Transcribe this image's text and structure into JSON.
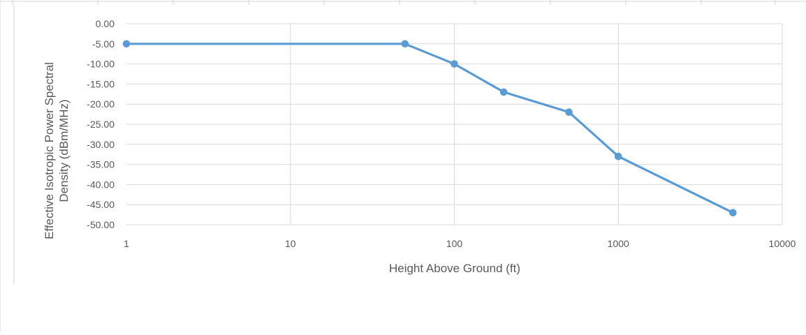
{
  "colors": {
    "series": "#5b9bd5",
    "grid": "#d9d9d9",
    "text": "#595959",
    "sheet_lines": "#d4d4d4"
  },
  "chart_data": {
    "type": "line",
    "xscale": "log",
    "x": [
      1,
      50,
      100,
      200,
      500,
      1000,
      5000
    ],
    "series": [
      {
        "values": [
          -5,
          -5,
          -10,
          -17,
          -22,
          -33,
          -47
        ]
      }
    ],
    "xlim": [
      1,
      10000
    ],
    "ylim": [
      -50,
      0
    ],
    "xticks": [
      1,
      10,
      100,
      1000,
      10000
    ],
    "xtick_labels": [
      "1",
      "10",
      "100",
      "1000",
      "10000"
    ],
    "yticks": [
      0,
      -5,
      -10,
      -15,
      -20,
      -25,
      -30,
      -35,
      -40,
      -45,
      -50
    ],
    "ytick_labels": [
      "0.00",
      "-5.00",
      "-10.00",
      "-15.00",
      "-20.00",
      "-25.00",
      "-30.00",
      "-35.00",
      "-40.00",
      "-45.00",
      "-50.00"
    ],
    "xlabel": "Height Above Ground (ft)",
    "ylabel_lines": [
      "Effective Isotropic Power Spectral",
      "Density (dBm/MHz)"
    ],
    "grid": true,
    "legend": "none",
    "markers": true
  }
}
